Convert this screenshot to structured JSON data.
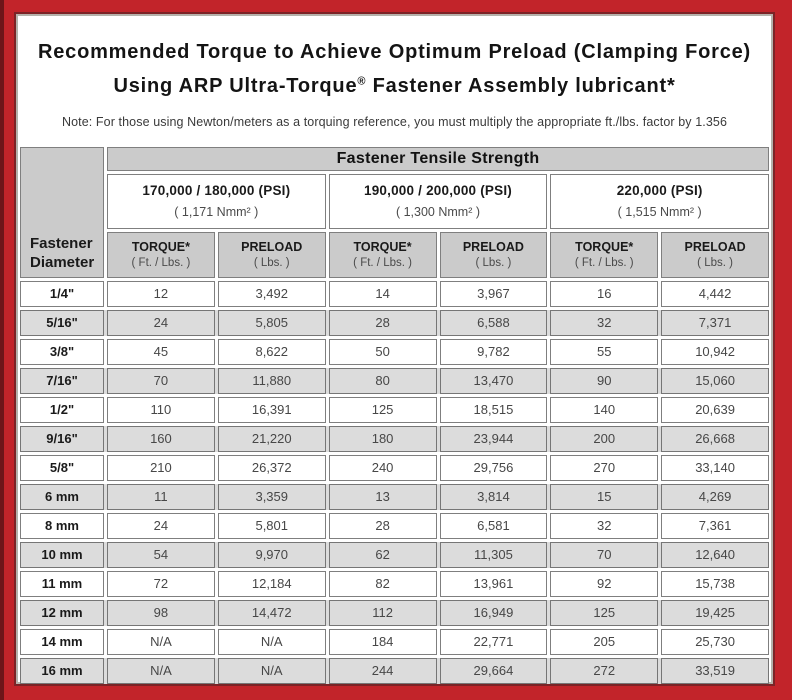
{
  "title": {
    "line1": "Recommended Torque to Achieve Optimum Preload (Clamping Force)",
    "line2_before_sup": "Using ARP Ultra-Torque",
    "line2_sup": "®",
    "line2_after_sup": " Fastener Assembly lubricant*"
  },
  "note": "Note: For those using Newton/meters as a torquing reference, you must multiply the appropriate ft./lbs. factor by 1.356",
  "table": {
    "tensile_header": "Fastener Tensile Strength",
    "diameter_header_line1": "Fastener",
    "diameter_header_line2": "Diameter",
    "strength_groups": [
      {
        "psi": "170,000 / 180,000 (PSI)",
        "nmm2": "( 1,171 Nmm² )"
      },
      {
        "psi": "190,000 / 200,000 (PSI)",
        "nmm2": "( 1,300 Nmm² )"
      },
      {
        "psi": "220,000 (PSI)",
        "nmm2": "( 1,515 Nmm² )"
      }
    ],
    "column_headers": [
      {
        "label": "TORQUE*",
        "unit": "( Ft. / Lbs. )"
      },
      {
        "label": "PRELOAD",
        "unit": "( Lbs. )"
      },
      {
        "label": "TORQUE*",
        "unit": "( Ft. / Lbs. )"
      },
      {
        "label": "PRELOAD",
        "unit": "( Lbs. )"
      },
      {
        "label": "TORQUE*",
        "unit": "( Ft. / Lbs. )"
      },
      {
        "label": "PRELOAD",
        "unit": "( Lbs. )"
      }
    ],
    "rows": [
      {
        "diameter": "1/4\"",
        "values": [
          "12",
          "3,492",
          "14",
          "3,967",
          "16",
          "4,442"
        ]
      },
      {
        "diameter": "5/16\"",
        "values": [
          "24",
          "5,805",
          "28",
          "6,588",
          "32",
          "7,371"
        ]
      },
      {
        "diameter": "3/8\"",
        "values": [
          "45",
          "8,622",
          "50",
          "9,782",
          "55",
          "10,942"
        ]
      },
      {
        "diameter": "7/16\"",
        "values": [
          "70",
          "11,880",
          "80",
          "13,470",
          "90",
          "15,060"
        ]
      },
      {
        "diameter": "1/2\"",
        "values": [
          "110",
          "16,391",
          "125",
          "18,515",
          "140",
          "20,639"
        ]
      },
      {
        "diameter": "9/16\"",
        "values": [
          "160",
          "21,220",
          "180",
          "23,944",
          "200",
          "26,668"
        ]
      },
      {
        "diameter": "5/8\"",
        "values": [
          "210",
          "26,372",
          "240",
          "29,756",
          "270",
          "33,140"
        ]
      },
      {
        "diameter": "6 mm",
        "values": [
          "11",
          "3,359",
          "13",
          "3,814",
          "15",
          "4,269"
        ]
      },
      {
        "diameter": "8 mm",
        "values": [
          "24",
          "5,801",
          "28",
          "6,581",
          "32",
          "7,361"
        ]
      },
      {
        "diameter": "10 mm",
        "values": [
          "54",
          "9,970",
          "62",
          "11,305",
          "70",
          "12,640"
        ]
      },
      {
        "diameter": "11 mm",
        "values": [
          "72",
          "12,184",
          "82",
          "13,961",
          "92",
          "15,738"
        ]
      },
      {
        "diameter": "12 mm",
        "values": [
          "98",
          "14,472",
          "112",
          "16,949",
          "125",
          "19,425"
        ]
      },
      {
        "diameter": "14 mm",
        "values": [
          "N/A",
          "N/A",
          "184",
          "22,771",
          "205",
          "25,730"
        ]
      },
      {
        "diameter": "16 mm",
        "values": [
          "N/A",
          "N/A",
          "244",
          "29,664",
          "272",
          "33,519"
        ]
      }
    ]
  },
  "colors": {
    "frame_red": "#c2242a",
    "frame_dark_red": "#6e1519",
    "frame_gray_line": "#b5b1aa",
    "header_cell_gray": "#cbcbcb",
    "alt_row_gray": "#dcdcdc",
    "cell_border_gray": "#7f7f7f"
  }
}
